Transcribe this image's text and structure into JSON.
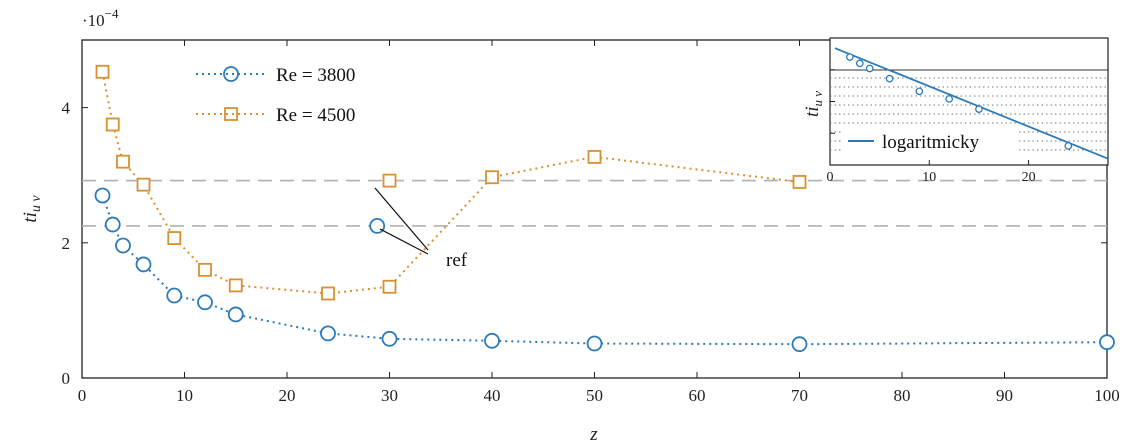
{
  "chart_data": [
    {
      "type": "line",
      "xlabel": "z",
      "ylabel": "ti",
      "ylabel_sub": "u v",
      "y_exponent_label": "·10",
      "y_exponent_power": "−4",
      "xlim": [
        0,
        100
      ],
      "ylim": [
        0,
        5
      ],
      "x_ticks": [
        0,
        10,
        20,
        30,
        40,
        50,
        60,
        70,
        80,
        90,
        100
      ],
      "y_ticks": [
        0,
        2,
        4
      ],
      "grid": false,
      "legend_position": "top-left",
      "series": [
        {
          "name": "Re = 3800",
          "color": "#2b7bba",
          "marker": "circle",
          "line_style": "dotted",
          "x": [
            2,
            3,
            4,
            6,
            9,
            12,
            15,
            24,
            30,
            40,
            50,
            70,
            100
          ],
          "y": [
            2.7,
            2.27,
            1.96,
            1.68,
            1.22,
            1.12,
            0.94,
            0.66,
            0.58,
            0.55,
            0.51,
            0.5,
            0.53
          ]
        },
        {
          "name": "Re = 4500",
          "color": "#d9902f",
          "marker": "square",
          "line_style": "dotted",
          "x": [
            2,
            3,
            4,
            6,
            9,
            12,
            15,
            24,
            30,
            40,
            50,
            70
          ],
          "y": [
            4.53,
            3.75,
            3.2,
            2.86,
            2.07,
            1.6,
            1.37,
            1.25,
            1.35,
            2.97,
            3.27,
            2.9
          ]
        }
      ],
      "reference_lines": [
        {
          "y": 2.92,
          "color": "#b0b0b0",
          "style": "dashed"
        },
        {
          "y": 2.25,
          "color": "#b0b0b0",
          "style": "dashed"
        }
      ],
      "reference_points": [
        {
          "x": 28.8,
          "y": 2.25,
          "marker": "circle",
          "series": "Re = 3800"
        },
        {
          "x": 30,
          "y": 2.92,
          "marker": "square",
          "series": "Re = 4500"
        }
      ],
      "annotation": {
        "text": "ref",
        "x": 34.5,
        "y": 1.8
      }
    },
    {
      "type": "line",
      "inset": true,
      "position": "top-right",
      "ylabel": "ti",
      "ylabel_sub": "u v",
      "xlim": [
        0,
        28
      ],
      "x_ticks": [
        0,
        10,
        20
      ],
      "log_scale_y": true,
      "grid_dotted_lower": true,
      "legend_position": "bottom-left",
      "series": [
        {
          "name": "logaritmicky",
          "color": "#2b7bba",
          "type": "line",
          "x": [
            0.5,
            28
          ],
          "y": [
            0.92,
            0.05
          ]
        },
        {
          "name": "",
          "color": "#2b7bba",
          "marker": "circle",
          "x": [
            2,
            3,
            4,
            6,
            9,
            12,
            15,
            24
          ],
          "y": [
            0.85,
            0.8,
            0.76,
            0.68,
            0.58,
            0.52,
            0.44,
            0.15
          ]
        }
      ]
    }
  ]
}
